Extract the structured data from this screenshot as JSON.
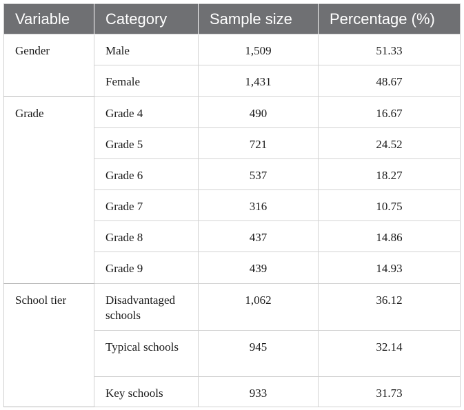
{
  "table": {
    "headers": [
      "Variable",
      "Category",
      "Sample size",
      "Percentage (%)"
    ],
    "groups": [
      {
        "variable": "Gender",
        "rows": [
          {
            "category": "Male",
            "sample_size": "1,509",
            "percentage": "51.33"
          },
          {
            "category": "Female",
            "sample_size": "1,431",
            "percentage": "48.67"
          }
        ]
      },
      {
        "variable": "Grade",
        "rows": [
          {
            "category": "Grade 4",
            "sample_size": "490",
            "percentage": "16.67"
          },
          {
            "category": "Grade 5",
            "sample_size": "721",
            "percentage": "24.52"
          },
          {
            "category": "Grade 6",
            "sample_size": "537",
            "percentage": "18.27"
          },
          {
            "category": "Grade 7",
            "sample_size": "316",
            "percentage": "10.75"
          },
          {
            "category": "Grade 8",
            "sample_size": "437",
            "percentage": "14.86"
          },
          {
            "category": "Grade 9",
            "sample_size": "439",
            "percentage": "14.93"
          }
        ]
      },
      {
        "variable": "School tier",
        "rows": [
          {
            "category": "Disadvantaged schools",
            "sample_size": "1,062",
            "percentage": "36.12"
          },
          {
            "category": "Typical schools",
            "sample_size": "945",
            "percentage": "32.14"
          },
          {
            "category": "Key schools",
            "sample_size": "933",
            "percentage": "31.73"
          }
        ]
      }
    ]
  }
}
